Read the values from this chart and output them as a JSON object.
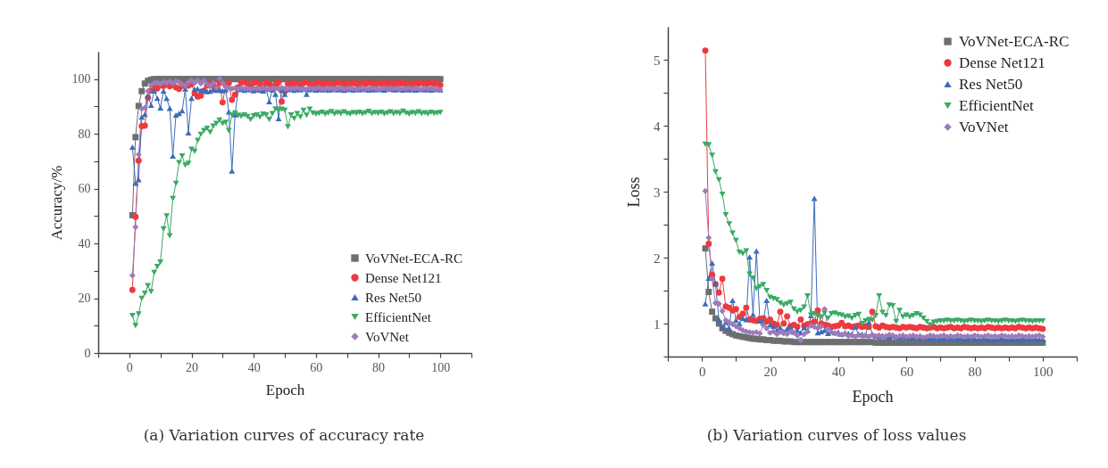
{
  "chart_data": [
    {
      "type": "line",
      "xlabel": "Epoch",
      "ylabel": "Accuracy/%",
      "legend": "bottom right",
      "annotations": [
        "(a) Variation curves of accuracy rate"
      ],
      "xlim": [
        -10,
        110
      ],
      "xticks": [
        {
          "value": -10,
          "label": null
        },
        0,
        {
          "value": 10,
          "label": null
        },
        20,
        {
          "value": 30,
          "label": null
        },
        40,
        {
          "value": 50,
          "label": null
        },
        60,
        {
          "value": 70,
          "label": null
        },
        80,
        {
          "value": 90,
          "label": null
        },
        100,
        {
          "value": 110,
          "label": null
        }
      ],
      "ylim": [
        0,
        110
      ],
      "yticks": [
        0,
        {
          "value": 10,
          "label": null
        },
        20,
        {
          "value": 30,
          "label": null
        },
        40,
        {
          "value": 50,
          "label": null
        },
        60,
        {
          "value": 70,
          "label": null
        },
        80,
        {
          "value": 90,
          "label": null
        },
        100
      ],
      "x": [
        1,
        2,
        3,
        4,
        5,
        6,
        7,
        8,
        9,
        10,
        11,
        12,
        13,
        14,
        15,
        16,
        17,
        18,
        19,
        20,
        21,
        22,
        23,
        24,
        25,
        26,
        27,
        28,
        29,
        30,
        31,
        32,
        33,
        34,
        35,
        36,
        37,
        38,
        39,
        40,
        41,
        42,
        43,
        44,
        45,
        46,
        47,
        48,
        49,
        50,
        51,
        52,
        53,
        54,
        55,
        56,
        57,
        58,
        59,
        60,
        61,
        62,
        63,
        64,
        65,
        66,
        67,
        68,
        69,
        70,
        71,
        72,
        73,
        74,
        75,
        76,
        77,
        78,
        79,
        80,
        81,
        82,
        83,
        84,
        85,
        86,
        87,
        88,
        89,
        90,
        91,
        92,
        93,
        94,
        95,
        96,
        97,
        98,
        99,
        100
      ],
      "series": [
        {
          "name": "VoVNet-ECA-RC",
          "color": "#6d6e71",
          "marker": "square",
          "values": [
            50.3,
            78.8,
            90.2,
            95.6,
            98.4,
            99.4,
            99.8,
            100,
            100,
            100,
            100,
            100,
            100,
            100,
            100,
            100,
            100,
            100,
            100,
            100,
            100,
            100,
            100,
            100,
            100,
            100,
            100,
            100,
            100,
            100,
            100,
            100,
            100,
            100,
            100,
            100,
            100,
            100,
            100,
            100,
            100,
            100,
            100,
            100,
            100,
            100,
            100,
            100,
            100,
            100,
            100,
            100,
            100,
            100,
            100,
            100,
            100,
            100,
            100,
            100,
            100,
            100,
            100,
            100,
            100,
            100,
            100,
            100,
            100,
            100,
            100,
            100,
            100,
            100,
            100,
            100,
            100,
            100,
            100,
            100,
            100,
            100,
            100,
            100,
            100,
            100,
            100,
            100,
            100,
            100,
            100,
            100,
            100,
            100,
            100,
            100,
            100,
            100,
            100,
            100
          ]
        },
        {
          "name": "Dense Net121",
          "color": "#ec3a3e",
          "marker": "circle",
          "values": [
            23,
            49.7,
            70.2,
            82.8,
            83,
            93.2,
            95.8,
            97.2,
            96.6,
            97.8,
            97.5,
            98.1,
            97.4,
            97.9,
            97,
            96.4,
            97.5,
            98.2,
            97.6,
            98.1,
            94.8,
            93.6,
            94,
            95.8,
            97.6,
            98.4,
            97.5,
            96.8,
            98.6,
            91.5,
            97.7,
            98.5,
            92.4,
            94.3,
            97,
            98.7,
            98.9,
            98.3,
            97.5,
            98.6,
            98.9,
            98.1,
            97.4,
            98.7,
            98.2,
            97.2,
            97.9,
            98.8,
            91.8,
            95.5,
            98.4,
            97.9,
            98.6,
            98.2,
            97.6,
            98.5,
            98.9,
            98.1,
            97.7,
            98.4,
            98.8,
            97.9,
            98.3,
            98.6,
            97.8,
            98.2,
            98.9,
            98.4,
            97.9,
            98.5,
            98.1,
            98.7,
            98.3,
            97.9,
            98.6,
            98.2,
            98.8,
            98.4,
            97.9,
            98.5,
            98.2,
            98.7,
            98.1,
            98.5,
            97.9,
            98.6,
            98.3,
            98.8,
            98.2,
            98.4,
            98,
            98.6,
            98.3,
            98.7,
            98.1,
            98.4,
            98.8,
            98.2,
            98.5,
            97.8
          ]
        },
        {
          "name": "Res Net50",
          "color": "#3d6cb9",
          "marker": "triangle",
          "values": [
            75.2,
            62,
            63.3,
            86.2,
            87.1,
            94,
            90.5,
            95.7,
            93,
            89.5,
            95.7,
            93,
            89.3,
            71.9,
            86.9,
            87.5,
            88.4,
            96.4,
            80.4,
            93,
            96.3,
            96.5,
            95.8,
            96,
            95.4,
            95.6,
            96.2,
            95.9,
            96,
            95.8,
            96.1,
            88,
            66.5,
            87,
            96.2,
            96.4,
            95.9,
            96.3,
            96.1,
            95.8,
            96.2,
            96,
            95.7,
            96.3,
            91.8,
            96.1,
            94.5,
            85.6,
            96,
            94.5,
            96.2,
            96.4,
            95.9,
            96.3,
            96.1,
            96.5,
            94.5,
            96.2,
            96.4,
            96,
            96.3,
            96.1,
            96.4,
            96,
            96.2,
            96.5,
            96.1,
            96.3,
            95.9,
            96.2,
            96.4,
            96,
            96.3,
            96.1,
            96.5,
            96.2,
            96,
            96.3,
            96.1,
            96.4,
            96.2,
            96,
            96.3,
            96.5,
            96.1,
            96.2,
            96.4,
            96,
            96.3,
            96.1,
            96.3,
            96,
            96.2,
            96.4,
            96.1,
            96.3,
            96,
            96.2,
            96.4,
            96.1
          ]
        },
        {
          "name": "EfficientNet",
          "color": "#3aaa64",
          "marker": "triangle-down",
          "values": [
            13.7,
            10,
            14.2,
            19.9,
            21.8,
            24.6,
            22.4,
            29.4,
            31.6,
            33.2,
            45.3,
            50,
            42.8,
            56.4,
            61.9,
            69.5,
            71.9,
            68.6,
            69.2,
            74.4,
            73.6,
            77.6,
            79.8,
            81.2,
            82,
            80.6,
            82.8,
            83.8,
            85,
            83.8,
            84.2,
            81.2,
            86.9,
            87.6,
            86.8,
            86.4,
            86.9,
            86.3,
            85.3,
            86.6,
            86.9,
            86.2,
            87.2,
            86.9,
            85.3,
            87.4,
            89.1,
            88.8,
            89,
            88.6,
            82.6,
            86.9,
            85.6,
            87.4,
            86.2,
            88.6,
            86.8,
            89,
            87.6,
            87.2,
            87.5,
            87.9,
            87.2,
            87.6,
            88.1,
            87.3,
            87.8,
            87.4,
            88,
            87.5,
            87.2,
            87.8,
            87.5,
            87.9,
            87.3,
            87.7,
            88.2,
            87.4,
            87.8,
            87.5,
            87.9,
            87.3,
            87.6,
            88,
            87.4,
            87.8,
            87.5,
            88.3,
            87.6,
            87.2,
            87.8,
            87.5,
            88,
            87.4,
            87.7,
            87.3,
            87.9,
            87.5,
            87.6,
            87.8
          ]
        },
        {
          "name": "VoVNet",
          "color": "#9d7bb8",
          "marker": "diamond",
          "values": [
            28.3,
            46,
            72.5,
            89.2,
            89.5,
            95.6,
            97.6,
            98.5,
            98.8,
            98.2,
            99,
            98.6,
            99.2,
            98.4,
            99.3,
            98.9,
            98,
            97.6,
            98.9,
            99.6,
            98.6,
            99.6,
            98.4,
            99.5,
            98.2,
            97.4,
            98.6,
            96.8,
            100.2,
            98.6,
            97.2,
            96.8,
            96.5,
            96.7,
            96.4,
            96.8,
            96.5,
            96.6,
            96.3,
            96.7,
            96.6,
            96.4,
            96.8,
            96.5,
            96.3,
            96.7,
            96.5,
            96.4,
            96.8,
            96.6,
            96.4,
            96.7,
            96.5,
            96.8,
            96.4,
            96.6,
            96.3,
            96.7,
            96.5,
            96.6,
            96.8,
            96.4,
            96.6,
            96.5,
            96.7,
            96.3,
            96.6,
            96.8,
            96.4,
            96.5,
            96.7,
            96.5,
            96.3,
            96.6,
            96.8,
            96.4,
            96.5,
            96.7,
            96.6,
            96.3,
            96.5,
            96.8,
            96.4,
            96.6,
            96.5,
            96.7,
            96.3,
            96.6,
            96.5,
            96.8,
            96.4,
            96.6,
            96.5,
            96.3,
            96.7,
            96.5,
            96.6,
            96.4,
            96.5,
            96.2
          ]
        }
      ]
    },
    {
      "type": "line",
      "xlabel": "Epoch",
      "ylabel": "Loss",
      "legend": "top right",
      "annotations": [
        "(b) Variation curves of loss values"
      ],
      "xlim": [
        -10,
        110
      ],
      "xticks": [
        {
          "value": -10,
          "label": null
        },
        0,
        {
          "value": 10,
          "label": null
        },
        20,
        {
          "value": 30,
          "label": null
        },
        40,
        {
          "value": 50,
          "label": null
        },
        60,
        {
          "value": 70,
          "label": null
        },
        80,
        {
          "value": 90,
          "label": null
        },
        100,
        {
          "value": 110,
          "label": null
        }
      ],
      "ylim": [
        0.5,
        5.5
      ],
      "yticks": [
        {
          "value": 0.5,
          "label": null
        },
        1,
        {
          "value": 1.5,
          "label": null
        },
        2,
        {
          "value": 2.5,
          "label": null
        },
        3,
        {
          "value": 3.5,
          "label": null
        },
        4,
        {
          "value": 4.5,
          "label": null
        },
        5
      ],
      "x": [
        1,
        2,
        3,
        4,
        5,
        6,
        7,
        8,
        9,
        10,
        11,
        12,
        13,
        14,
        15,
        16,
        17,
        18,
        19,
        20,
        21,
        22,
        23,
        24,
        25,
        26,
        27,
        28,
        29,
        30,
        31,
        32,
        33,
        34,
        35,
        36,
        37,
        38,
        39,
        40,
        41,
        42,
        43,
        44,
        45,
        46,
        47,
        48,
        49,
        50,
        51,
        52,
        53,
        54,
        55,
        56,
        57,
        58,
        59,
        60,
        61,
        62,
        63,
        64,
        65,
        66,
        67,
        68,
        69,
        70,
        71,
        72,
        73,
        74,
        75,
        76,
        77,
        78,
        79,
        80,
        81,
        82,
        83,
        84,
        85,
        86,
        87,
        88,
        89,
        90,
        91,
        92,
        93,
        94,
        95,
        96,
        97,
        98,
        99,
        100
      ],
      "series": [
        {
          "name": "VoVNet-ECA-RC",
          "color": "#6d6e71",
          "marker": "square",
          "values": [
            2.14,
            1.48,
            1.18,
            1.08,
            1.0,
            0.93,
            0.89,
            0.86,
            0.84,
            0.82,
            0.81,
            0.8,
            0.79,
            0.78,
            0.77,
            0.77,
            0.76,
            0.76,
            0.75,
            0.75,
            0.74,
            0.74,
            0.74,
            0.73,
            0.73,
            0.73,
            0.72,
            0.72,
            0.72,
            0.72,
            0.72,
            0.72,
            0.72,
            0.72,
            0.72,
            0.72,
            0.72,
            0.72,
            0.72,
            0.72,
            0.72,
            0.72,
            0.72,
            0.72,
            0.72,
            0.72,
            0.72,
            0.72,
            0.72,
            0.72,
            0.71,
            0.71,
            0.71,
            0.71,
            0.71,
            0.71,
            0.71,
            0.71,
            0.71,
            0.71,
            0.71,
            0.71,
            0.71,
            0.71,
            0.71,
            0.71,
            0.71,
            0.71,
            0.71,
            0.71,
            0.71,
            0.71,
            0.71,
            0.71,
            0.71,
            0.71,
            0.71,
            0.71,
            0.71,
            0.71,
            0.71,
            0.71,
            0.71,
            0.71,
            0.71,
            0.71,
            0.71,
            0.71,
            0.71,
            0.71,
            0.71,
            0.71,
            0.71,
            0.71,
            0.71,
            0.71,
            0.71,
            0.71,
            0.71,
            0.71
          ]
        },
        {
          "name": "Dense Net121",
          "color": "#ec3a3e",
          "marker": "circle",
          "values": [
            5.14,
            2.21,
            1.74,
            1.6,
            1.47,
            1.68,
            1.26,
            1.24,
            1.2,
            1.22,
            1.1,
            1.15,
            1.24,
            1.06,
            1.05,
            1.04,
            1.07,
            1.08,
            1.03,
            1.06,
            1.0,
            0.98,
            1.18,
            1.0,
            1.11,
            0.96,
            0.98,
            0.95,
            1.06,
            0.97,
            0.99,
            1.0,
            1.03,
            1.2,
            1.0,
            0.98,
            0.97,
            0.95,
            0.96,
            0.97,
            1.01,
            0.96,
            0.97,
            0.95,
            0.96,
            0.97,
            0.95,
            0.96,
            0.95,
            1.18,
            0.96,
            0.94,
            0.97,
            0.95,
            0.94,
            0.95,
            0.94,
            0.93,
            0.95,
            0.94,
            0.95,
            0.94,
            0.93,
            0.95,
            0.94,
            0.93,
            0.94,
            0.95,
            0.93,
            0.94,
            0.93,
            0.94,
            0.95,
            0.93,
            0.94,
            0.93,
            0.95,
            0.94,
            0.93,
            0.94,
            0.93,
            0.94,
            0.93,
            0.95,
            0.94,
            0.93,
            0.94,
            0.93,
            0.94,
            0.93,
            0.94,
            0.93,
            0.95,
            0.94,
            0.93,
            0.94,
            0.93,
            0.94,
            0.93,
            0.92
          ]
        },
        {
          "name": "Res Net50",
          "color": "#3d6cb9",
          "marker": "triangle",
          "values": [
            1.3,
            1.69,
            1.92,
            1.6,
            1.06,
            0.95,
            1.02,
            0.93,
            1.35,
            1.05,
            1.0,
            1.08,
            1.06,
            2.01,
            1.14,
            2.1,
            1.04,
            1.02,
            1.35,
            0.98,
            0.96,
            0.9,
            0.94,
            0.88,
            0.92,
            0.95,
            0.87,
            0.9,
            0.86,
            0.94,
            0.9,
            1.12,
            2.9,
            0.86,
            0.88,
            0.9,
            0.85,
            0.88,
            0.86,
            0.87,
            0.84,
            0.86,
            0.85,
            0.84,
            0.95,
            0.83,
            0.84,
            0.82,
            1.02,
            0.83,
            0.81,
            0.8,
            0.82,
            0.8,
            0.79,
            0.81,
            0.8,
            0.79,
            0.8,
            0.79,
            0.78,
            0.79,
            0.8,
            0.78,
            0.79,
            0.78,
            0.77,
            0.79,
            0.78,
            0.77,
            0.78,
            0.79,
            0.77,
            0.78,
            0.77,
            0.78,
            0.76,
            0.77,
            0.78,
            0.77,
            0.76,
            0.77,
            0.78,
            0.76,
            0.77,
            0.76,
            0.77,
            0.78,
            0.76,
            0.77,
            0.76,
            0.77,
            0.76,
            0.78,
            0.76,
            0.77,
            0.76,
            0.77,
            0.76,
            0.76
          ]
        },
        {
          "name": "EfficientNet",
          "color": "#3aaa64",
          "marker": "triangle-down",
          "values": [
            3.72,
            3.71,
            3.55,
            3.3,
            3.18,
            2.96,
            2.65,
            2.51,
            2.37,
            2.26,
            2.08,
            2.06,
            2.1,
            1.75,
            1.69,
            1.53,
            1.56,
            1.59,
            1.5,
            1.4,
            1.38,
            1.36,
            1.31,
            1.28,
            1.3,
            1.32,
            1.22,
            1.18,
            1.2,
            1.25,
            1.42,
            1.13,
            1.15,
            1.12,
            1.1,
            1.16,
            1.08,
            1.15,
            1.16,
            1.14,
            1.13,
            1.1,
            1.11,
            1.08,
            1.12,
            1.14,
            1.0,
            1.04,
            1.06,
            1.05,
            1.12,
            1.42,
            1.17,
            1.12,
            1.28,
            1.27,
            1.03,
            1.2,
            1.1,
            1.13,
            1.1,
            1.12,
            1.15,
            1.13,
            1.08,
            1.03,
            0.98,
            1.02,
            1.03,
            1.04,
            1.04,
            1.05,
            1.04,
            1.04,
            1.05,
            1.04,
            1.03,
            1.04,
            1.05,
            1.04,
            1.04,
            1.03,
            1.04,
            1.05,
            1.04,
            1.04,
            1.03,
            1.04,
            1.05,
            1.04,
            1.04,
            1.03,
            1.04,
            1.05,
            1.04,
            1.04,
            1.03,
            1.04,
            1.04,
            1.04
          ]
        },
        {
          "name": "VoVNet",
          "color": "#9d7bb8",
          "marker": "diamond",
          "values": [
            3.01,
            2.3,
            1.68,
            1.31,
            1.3,
            1.19,
            1.05,
            1.02,
            0.99,
            0.96,
            0.93,
            0.9,
            0.88,
            0.87,
            0.86,
            0.87,
            0.85,
            0.98,
            0.93,
            0.86,
            0.88,
            0.84,
            0.87,
            0.85,
            0.84,
            0.88,
            0.86,
            0.82,
            0.75,
            0.84,
            0.88,
            0.97,
            0.95,
            0.93,
            0.96,
            1.22,
            0.92,
            0.87,
            0.85,
            0.84,
            0.83,
            0.85,
            0.81,
            0.82,
            0.8,
            0.83,
            0.81,
            0.82,
            0.8,
            0.83,
            0.81,
            0.82,
            0.8,
            0.81,
            0.83,
            0.82,
            0.8,
            0.81,
            0.82,
            0.8,
            0.81,
            0.82,
            0.8,
            0.81,
            0.79,
            0.8,
            0.82,
            0.81,
            0.8,
            0.81,
            0.82,
            0.8,
            0.81,
            0.8,
            0.82,
            0.81,
            0.8,
            0.81,
            0.8,
            0.82,
            0.81,
            0.8,
            0.81,
            0.82,
            0.8,
            0.81,
            0.8,
            0.82,
            0.81,
            0.8,
            0.81,
            0.8,
            0.82,
            0.81,
            0.8,
            0.81,
            0.8,
            0.81,
            0.82,
            0.8
          ]
        }
      ]
    }
  ]
}
